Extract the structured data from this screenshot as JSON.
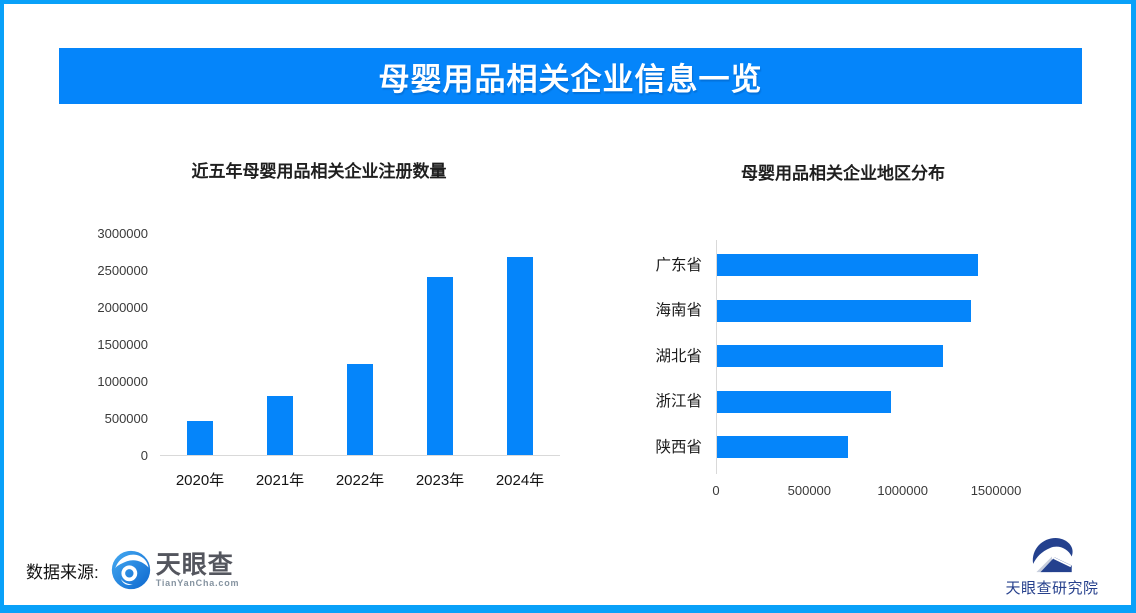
{
  "banner": {
    "title": "母婴用品相关企业信息一览"
  },
  "colors": {
    "frame_border": "#09a1f9",
    "banner_background": "#0585fa",
    "bar_blue": "#0585fa",
    "axis_line": "#d9d9d9"
  },
  "chart_data": [
    {
      "type": "bar",
      "orientation": "vertical",
      "title": "近五年母婴用品相关企业注册数量",
      "categories": [
        "2020年",
        "2021年",
        "2022年",
        "2023年",
        "2024年"
      ],
      "values": [
        460000,
        800000,
        1230000,
        2400000,
        2680000
      ],
      "ylabel": "",
      "xlabel": "",
      "ylim": [
        0,
        3000000
      ],
      "yticks": [
        0,
        500000,
        1000000,
        1500000,
        2000000,
        2500000,
        3000000
      ],
      "grid": false,
      "bar_color": "#0585fa"
    },
    {
      "type": "bar",
      "orientation": "horizontal",
      "title": "母婴用品相关企业地区分布",
      "categories": [
        "广东省",
        "海南省",
        "湖北省",
        "浙江省",
        "陕西省"
      ],
      "values": [
        1400000,
        1360000,
        1210000,
        930000,
        700000
      ],
      "ylabel": "",
      "xlabel": "",
      "xlim": [
        0,
        1500000
      ],
      "xticks": [
        0,
        500000,
        1000000,
        1500000
      ],
      "grid": false,
      "bar_color": "#0585fa"
    }
  ],
  "footer": {
    "source_label": "数据来源:",
    "tianyancha": {
      "name": "天眼查",
      "domain": "TianYanCha.com"
    },
    "institute": {
      "name": "天眼查研究院"
    }
  }
}
